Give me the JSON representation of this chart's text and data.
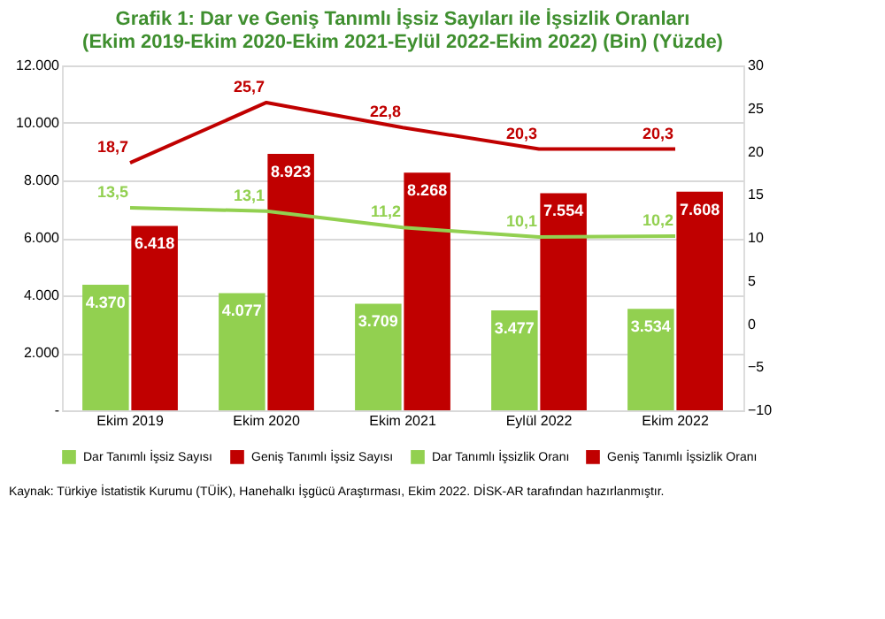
{
  "chart_data": {
    "type": "bar",
    "title": "Grafik 1: Dar ve Geniş Tanımlı İşsiz Sayıları ile İşsizlik Oranları",
    "subtitle": "(Ekim 2019-Ekim 2020-Ekim 2021-Eylül 2022-Ekim 2022) (Bin) (Yüzde)",
    "categories": [
      "Ekim 2019",
      "Ekim 2020",
      "Ekim 2021",
      "Eylül 2022",
      "Ekim 2022"
    ],
    "series": [
      {
        "name": "Dar Tanımlı İşsiz Sayısı",
        "color": "#92d050",
        "values": [
          4370,
          4077,
          3709,
          3477,
          3534
        ],
        "value_labels": [
          "4.370",
          "4.077",
          "3.709",
          "3.477",
          "3.534"
        ]
      },
      {
        "name": "Geniş Tanımlı İşsiz Sayısı",
        "color": "#c00000",
        "values": [
          6418,
          8923,
          8268,
          7554,
          7608
        ],
        "value_labels": [
          "6.418",
          "8.923",
          "8.268",
          "7.554",
          "7.608"
        ]
      },
      {
        "name": "Dar Tanımlı İşsizlik Oranı",
        "type": "line",
        "axis": "y2",
        "color": "#92d050",
        "values": [
          13.5,
          13.1,
          11.2,
          10.1,
          10.2
        ],
        "value_labels": [
          "13,5",
          "13,1",
          "11,2",
          "10,1",
          "10,2"
        ]
      },
      {
        "name": "Geniş Tanımlı İşsizlik Oranı",
        "type": "line",
        "axis": "y2",
        "color": "#c00000",
        "values": [
          18.7,
          25.7,
          22.8,
          20.3,
          20.3
        ],
        "value_labels": [
          "18,7",
          "25,7",
          "22,8",
          "20,3",
          "20,3"
        ]
      }
    ],
    "ylim": [
      0,
      12000
    ],
    "yticks": [
      {
        "value": 0,
        "label": "-"
      },
      {
        "value": 2000,
        "label": "2.000"
      },
      {
        "value": 4000,
        "label": "4.000"
      },
      {
        "value": 6000,
        "label": "6.000"
      },
      {
        "value": 8000,
        "label": "8.000"
      },
      {
        "value": 10000,
        "label": "10.000"
      },
      {
        "value": 12000,
        "label": "12.000"
      }
    ],
    "y2lim": [
      -10,
      30
    ],
    "y2ticks": [
      -10,
      -5,
      0,
      5,
      10,
      15,
      20,
      25,
      30
    ],
    "grid": "y",
    "legend": "bottom",
    "marker": "none",
    "line_style": "solid",
    "annotations": [
      "Kaynak: Türkiye İstatistik Kurumu (TÜİK), Hanehalkı İşgücü Araştırması, Ekim 2022. DİSK-AR tarafından hazırlanmıştır."
    ]
  }
}
